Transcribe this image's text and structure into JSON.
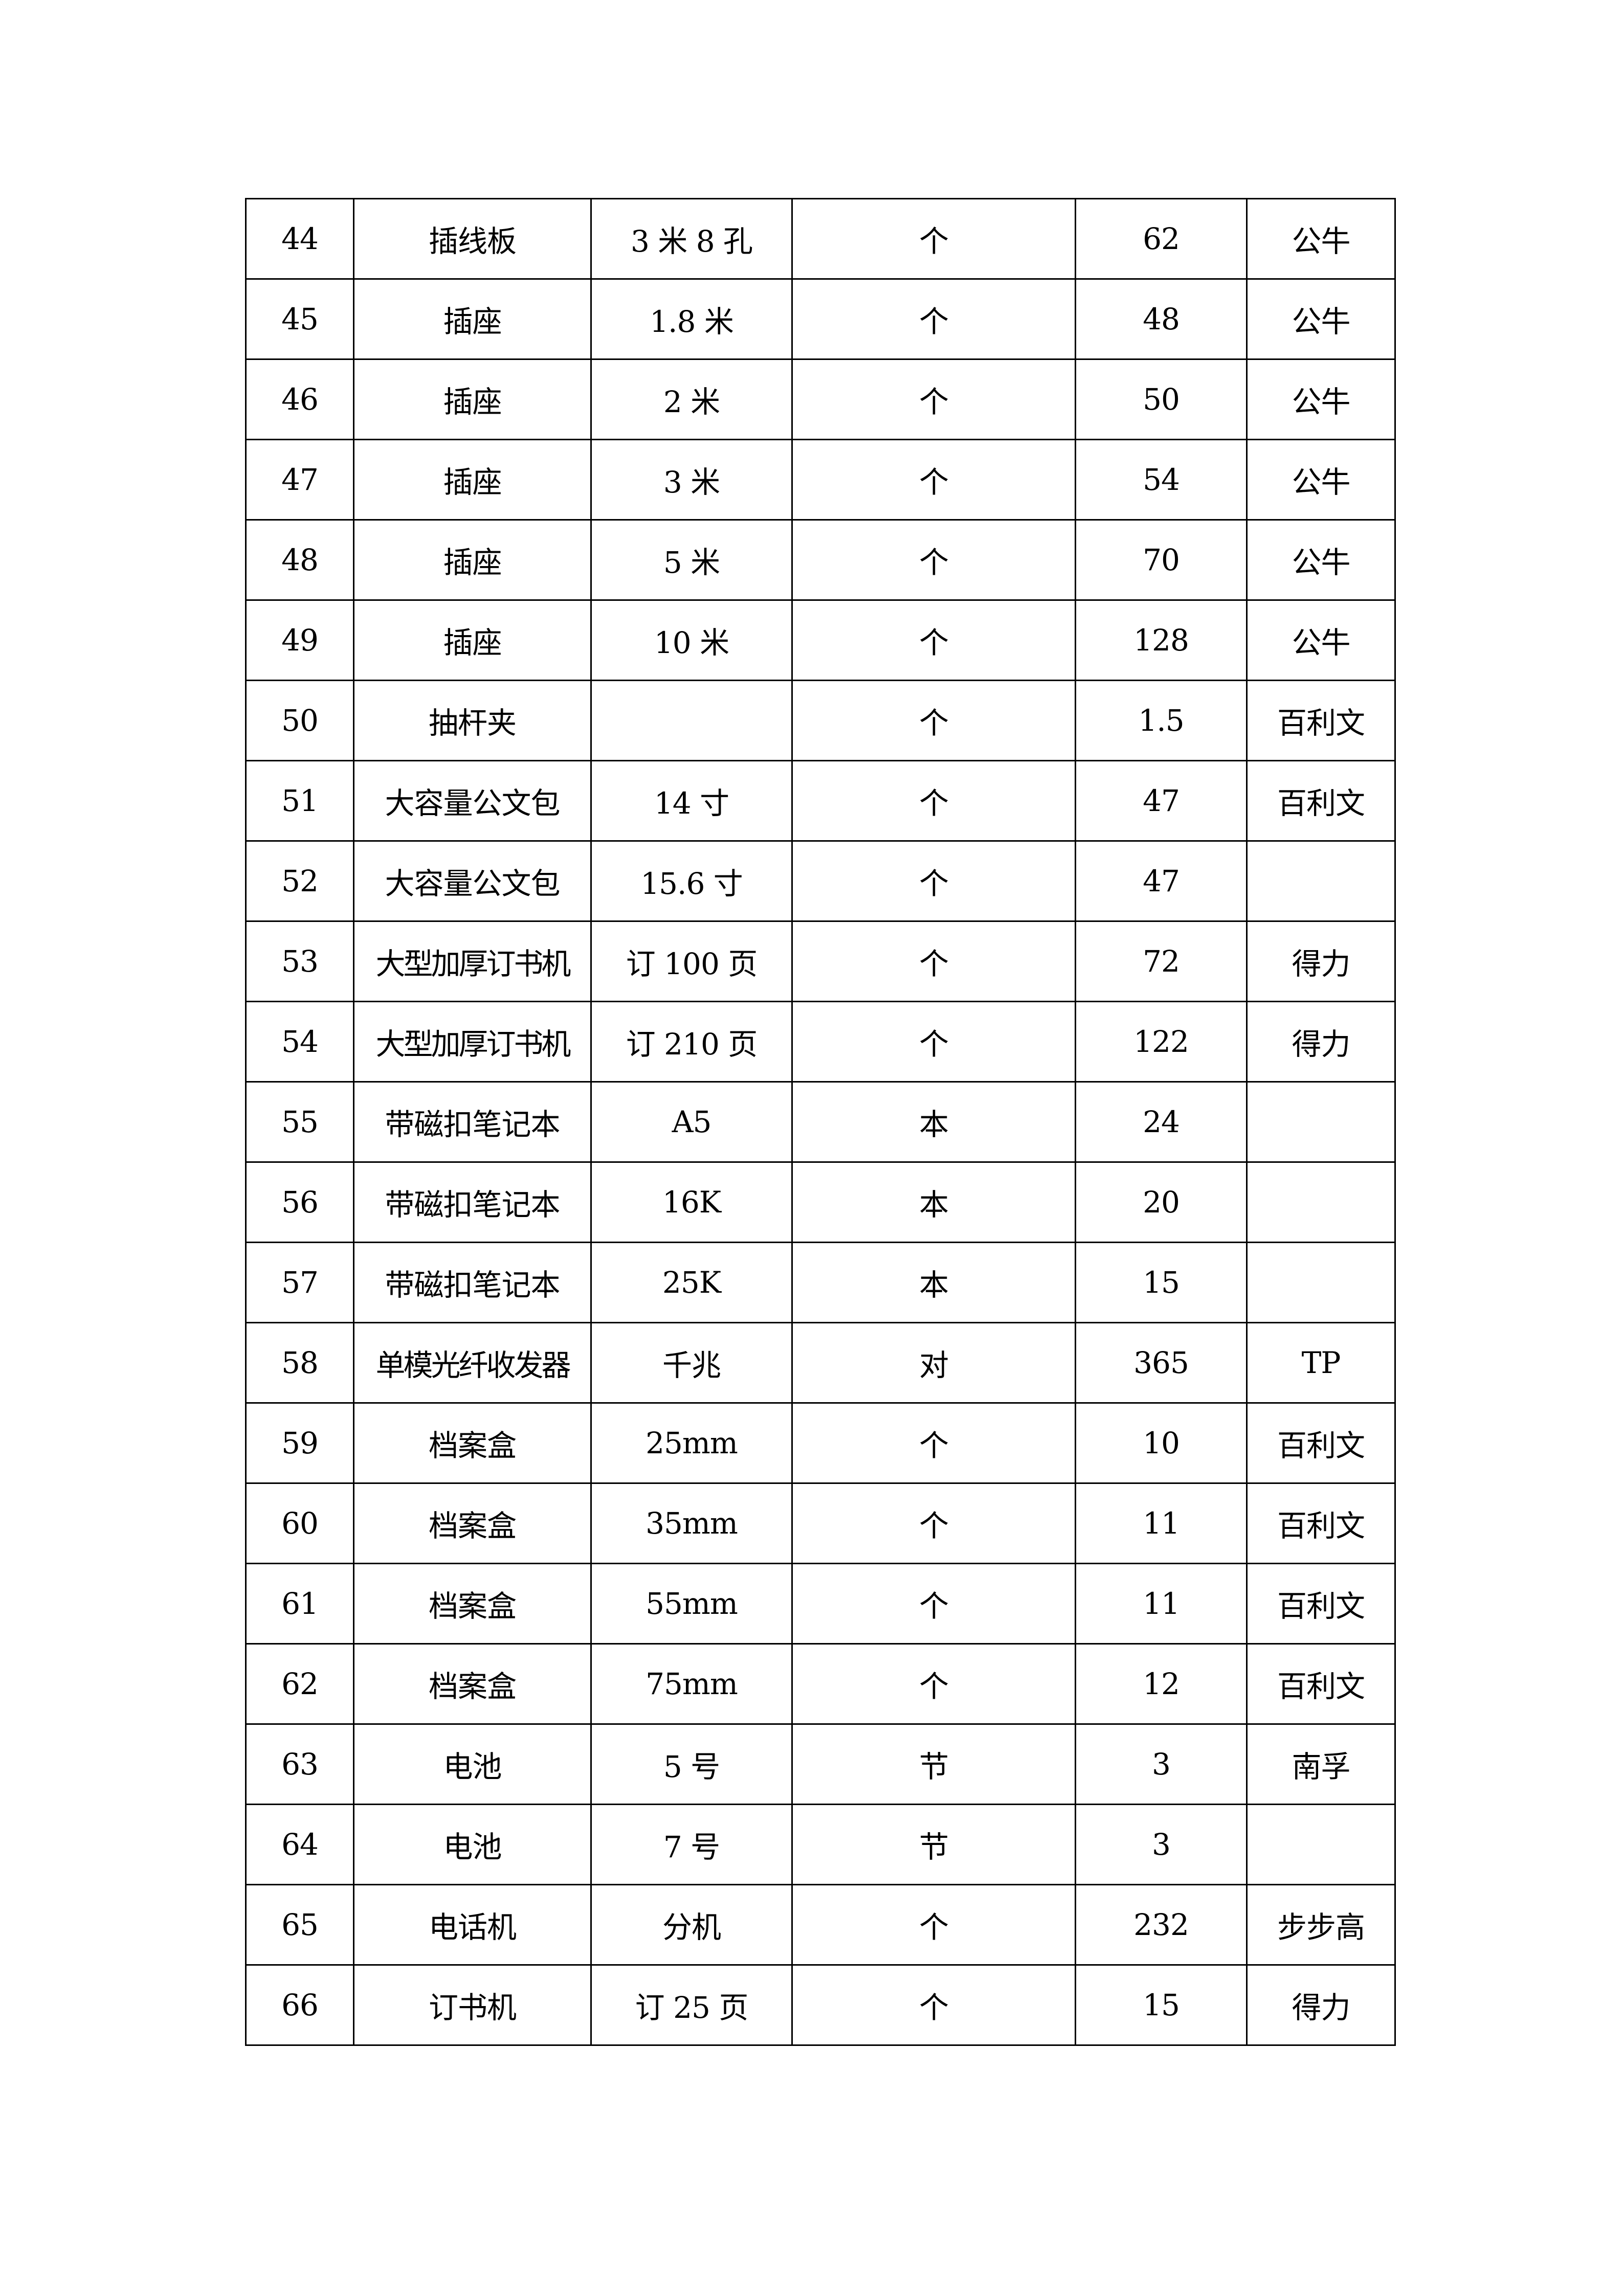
{
  "rows": [
    [
      "44",
      "插线板",
      "3 米 8 孔",
      "个",
      "62",
      "公牛"
    ],
    [
      "45",
      "插座",
      "1.8 米",
      "个",
      "48",
      "公牛"
    ],
    [
      "46",
      "插座",
      "2 米",
      "个",
      "50",
      "公牛"
    ],
    [
      "47",
      "插座",
      "3 米",
      "个",
      "54",
      "公牛"
    ],
    [
      "48",
      "插座",
      "5 米",
      "个",
      "70",
      "公牛"
    ],
    [
      "49",
      "插座",
      "10 米",
      "个",
      "128",
      "公牛"
    ],
    [
      "50",
      "抽杆夹",
      "",
      "个",
      "1.5",
      "百利文"
    ],
    [
      "51",
      "大容量公文包",
      "14 寸",
      "个",
      "47",
      "百利文"
    ],
    [
      "52",
      "大容量公文包",
      "15.6 寸",
      "个",
      "47",
      ""
    ],
    [
      "53",
      "大型加厚订书机",
      "订 100 页",
      "个",
      "72",
      "得力"
    ],
    [
      "54",
      "大型加厚订书机",
      "订 210 页",
      "个",
      "122",
      "得力"
    ],
    [
      "55",
      "带磁扣笔记本",
      "A5",
      "本",
      "24",
      ""
    ],
    [
      "56",
      "带磁扣笔记本",
      "16K",
      "本",
      "20",
      ""
    ],
    [
      "57",
      "带磁扣笔记本",
      "25K",
      "本",
      "15",
      ""
    ],
    [
      "58",
      "单模光纤收发器",
      "千兆",
      "对",
      "365",
      "TP"
    ],
    [
      "59",
      "档案盒",
      "25mm",
      "个",
      "10",
      "百利文"
    ],
    [
      "60",
      "档案盒",
      "35mm",
      "个",
      "11",
      "百利文"
    ],
    [
      "61",
      "档案盒",
      "55mm",
      "个",
      "11",
      "百利文"
    ],
    [
      "62",
      "档案盒",
      "75mm",
      "个",
      "12",
      "百利文"
    ],
    [
      "63",
      "电池",
      "5 号",
      "节",
      "3",
      "南孚"
    ],
    [
      "64",
      "电池",
      "7 号",
      "节",
      "3",
      ""
    ],
    [
      "65",
      "电话机",
      "分机",
      "个",
      "232",
      "步步高"
    ],
    [
      "66",
      "订书机",
      "订 25 页",
      "个",
      "15",
      "得力"
    ]
  ]
}
